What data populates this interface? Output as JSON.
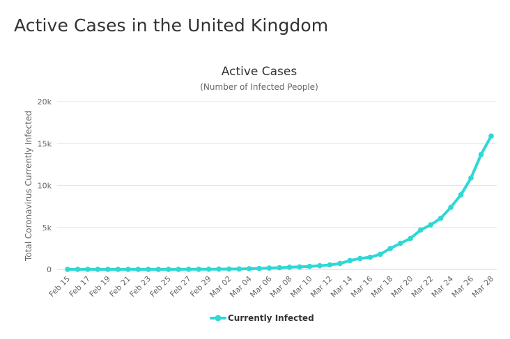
{
  "page": {
    "heading": "Active Cases in the United Kingdom"
  },
  "chart_data": {
    "type": "line",
    "title": "Active Cases",
    "subtitle": "(Number of Infected People)",
    "xlabel": "",
    "ylabel": "Total Coronavirus Currently Infected",
    "ylim": [
      0,
      20000
    ],
    "yticks": [
      0,
      5000,
      10000,
      15000,
      20000
    ],
    "ytick_labels": [
      "0",
      "5k",
      "10k",
      "15k",
      "20k"
    ],
    "x": [
      "Feb 15",
      "Feb 16",
      "Feb 17",
      "Feb 18",
      "Feb 19",
      "Feb 20",
      "Feb 21",
      "Feb 22",
      "Feb 23",
      "Feb 24",
      "Feb 25",
      "Feb 26",
      "Feb 27",
      "Feb 28",
      "Feb 29",
      "Mar 01",
      "Mar 02",
      "Mar 03",
      "Mar 04",
      "Mar 05",
      "Mar 06",
      "Mar 07",
      "Mar 08",
      "Mar 09",
      "Mar 10",
      "Mar 11",
      "Mar 12",
      "Mar 13",
      "Mar 14",
      "Mar 15",
      "Mar 16",
      "Mar 17",
      "Mar 18",
      "Mar 19",
      "Mar 20",
      "Mar 21",
      "Mar 22",
      "Mar 23",
      "Mar 24",
      "Mar 25",
      "Mar 26",
      "Mar 27",
      "Mar 28"
    ],
    "xtick_labels": [
      "Feb 15",
      "Feb 17",
      "Feb 19",
      "Feb 21",
      "Feb 23",
      "Feb 25",
      "Feb 27",
      "Feb 29",
      "Mar 02",
      "Mar 04",
      "Mar 06",
      "Mar 08",
      "Mar 10",
      "Mar 12",
      "Mar 14",
      "Mar 16",
      "Mar 18",
      "Mar 20",
      "Mar 22",
      "Mar 24",
      "Mar 26",
      "Mar 28"
    ],
    "series": [
      {
        "name": "Currently Infected",
        "color": "#2ed8d4",
        "values": [
          8,
          8,
          8,
          8,
          8,
          8,
          8,
          8,
          8,
          8,
          8,
          12,
          14,
          19,
          22,
          35,
          39,
          50,
          80,
          110,
          160,
          200,
          260,
          300,
          360,
          440,
          540,
          700,
          1050,
          1300,
          1450,
          1800,
          2500,
          3100,
          3700,
          4700,
          5300,
          6100,
          7400,
          8900,
          10900,
          13700,
          15900
        ]
      }
    ],
    "grid": true,
    "legend_position": "bottom-center"
  }
}
